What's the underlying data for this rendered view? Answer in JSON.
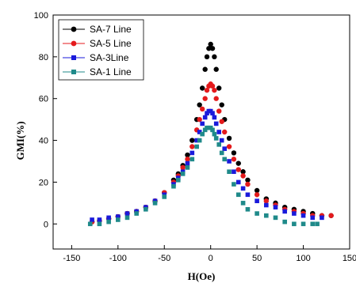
{
  "chart_data": {
    "type": "scatter",
    "title": "",
    "xlabel": "H(Oe)",
    "ylabel": "GMI(%)",
    "xlim": [
      -170,
      150
    ],
    "ylim": [
      -12,
      100
    ],
    "xticks": [
      -150,
      -100,
      -50,
      0,
      50,
      100,
      150
    ],
    "yticks": [
      0,
      20,
      40,
      60,
      80,
      100
    ],
    "legend_position": "top-left",
    "grid": false,
    "series": [
      {
        "name": "SA-7 Line",
        "color": "#000000",
        "marker": "circle",
        "x": [
          -128,
          -120,
          -110,
          -100,
          -90,
          -80,
          -70,
          -60,
          -50,
          -40,
          -35,
          -30,
          -25,
          -20,
          -15,
          -12,
          -9,
          -6,
          -4,
          -2,
          0,
          2,
          4,
          6,
          9,
          12,
          15,
          20,
          25,
          30,
          35,
          40,
          50,
          60,
          70,
          80,
          90,
          100,
          110,
          120,
          130
        ],
        "y": [
          1,
          1.5,
          2.5,
          3.5,
          5,
          6,
          8,
          11,
          15,
          21,
          24,
          28,
          33,
          40,
          50,
          57,
          65,
          74,
          80,
          84,
          86,
          84,
          80,
          74,
          65,
          57,
          50,
          41,
          34,
          29,
          25,
          21,
          16,
          12,
          10,
          8,
          7,
          6,
          5,
          4,
          4
        ]
      },
      {
        "name": "SA-5 Line",
        "color": "#e41a1c",
        "marker": "circle",
        "x": [
          -128,
          -120,
          -110,
          -100,
          -90,
          -80,
          -70,
          -60,
          -50,
          -40,
          -35,
          -30,
          -25,
          -20,
          -15,
          -12,
          -9,
          -6,
          -4,
          -2,
          0,
          2,
          4,
          6,
          9,
          12,
          15,
          20,
          25,
          30,
          35,
          40,
          50,
          60,
          70,
          80,
          90,
          100,
          110,
          120,
          130
        ],
        "y": [
          1,
          1.5,
          2.5,
          3.5,
          5,
          6,
          8,
          11,
          15,
          20,
          23,
          27,
          31,
          37,
          45,
          50,
          55,
          60,
          64,
          66,
          67,
          66,
          64,
          60,
          54,
          49,
          44,
          37,
          31,
          26,
          23,
          19,
          14,
          11,
          9,
          7,
          6,
          5,
          4,
          4,
          4
        ]
      },
      {
        "name": "SA-3Line",
        "color": "#1a1adb",
        "marker": "square",
        "x": [
          -128,
          -120,
          -110,
          -100,
          -90,
          -80,
          -70,
          -60,
          -50,
          -40,
          -35,
          -30,
          -25,
          -20,
          -15,
          -12,
          -9,
          -6,
          -4,
          -2,
          0,
          2,
          4,
          6,
          9,
          12,
          15,
          20,
          25,
          30,
          35,
          40,
          50,
          60,
          70,
          80,
          90,
          100,
          110,
          120
        ],
        "y": [
          2,
          2,
          3,
          3.5,
          5,
          6,
          8,
          11,
          14,
          19,
          22,
          25,
          29,
          34,
          40,
          44,
          48,
          51,
          53,
          54,
          54,
          53,
          51,
          48,
          44,
          40,
          36,
          30,
          25,
          20,
          17,
          14,
          11,
          9,
          8,
          6,
          5,
          4,
          3,
          3
        ]
      },
      {
        "name": "SA-1 Line",
        "color": "#1f8a8a",
        "marker": "square",
        "x": [
          -130,
          -120,
          -110,
          -100,
          -90,
          -80,
          -70,
          -60,
          -50,
          -40,
          -35,
          -30,
          -25,
          -20,
          -15,
          -12,
          -9,
          -6,
          -4,
          -2,
          0,
          2,
          4,
          6,
          9,
          12,
          15,
          20,
          25,
          30,
          35,
          40,
          50,
          60,
          70,
          80,
          90,
          100,
          110,
          115
        ],
        "y": [
          0,
          0,
          1,
          2,
          3,
          5,
          7,
          10,
          13,
          18,
          21,
          24,
          27,
          31,
          37,
          40,
          43,
          45,
          46,
          46,
          46,
          45,
          43,
          41,
          38,
          34,
          31,
          25,
          19,
          14,
          10,
          7,
          5,
          4,
          3,
          1,
          0,
          0,
          0,
          0
        ]
      }
    ]
  }
}
